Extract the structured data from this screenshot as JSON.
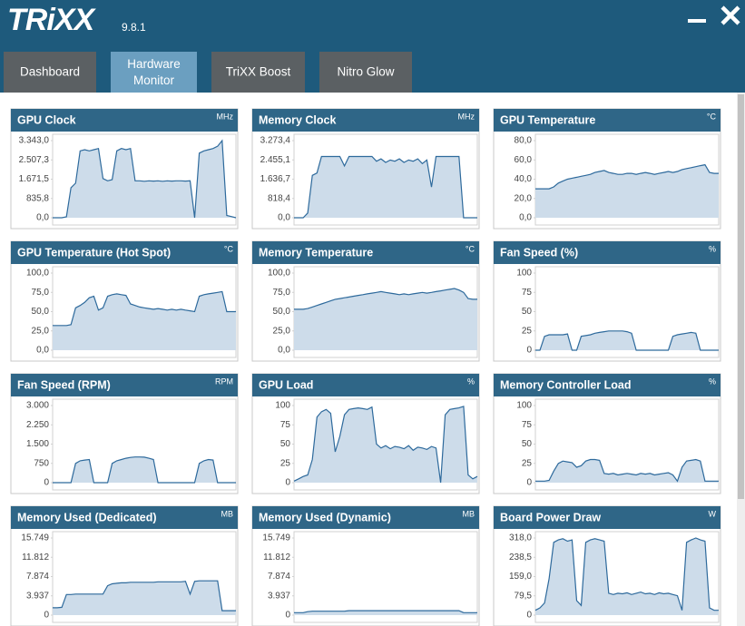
{
  "header": {
    "logo": "TRiXX",
    "version": "9.8.1"
  },
  "tabs": [
    "Dashboard",
    "Hardware Monitor",
    "TriXX Boost",
    "Nitro Glow"
  ],
  "active_tab": 1,
  "chart_data": [
    {
      "type": "area",
      "title": "GPU Clock",
      "unit": "MHz",
      "ylim": [
        0,
        3343
      ],
      "yticks": [
        {
          "value": 0,
          "label": "0,0"
        },
        {
          "value": 835.8,
          "label": "835,8"
        },
        {
          "value": 1671.5,
          "label": "1.671,5"
        },
        {
          "value": 2507.3,
          "label": "2.507,3"
        },
        {
          "value": 3343,
          "label": "3.343,0"
        }
      ],
      "values": [
        0,
        0,
        0,
        40,
        1300,
        1500,
        2900,
        2950,
        2900,
        2950,
        3000,
        1700,
        1600,
        1650,
        2900,
        3000,
        2950,
        3000,
        1600,
        1600,
        1580,
        1600,
        1590,
        1600,
        1580,
        1600,
        1590,
        1600,
        1600,
        1590,
        1600,
        0,
        2800,
        2900,
        2950,
        3000,
        3100,
        3343,
        100,
        50,
        0
      ]
    },
    {
      "type": "area",
      "title": "Memory Clock",
      "unit": "MHz",
      "ylim": [
        0,
        3273.4
      ],
      "yticks": [
        {
          "value": 0,
          "label": "0,0"
        },
        {
          "value": 818.4,
          "label": "818,4"
        },
        {
          "value": 1636.7,
          "label": "1.636,7"
        },
        {
          "value": 2455.1,
          "label": "2.455,1"
        },
        {
          "value": 3273.4,
          "label": "3.273,4"
        }
      ],
      "values": [
        0,
        0,
        0,
        200,
        1800,
        1900,
        2600,
        2600,
        2600,
        2600,
        2600,
        2200,
        2600,
        2600,
        2600,
        2600,
        2600,
        2600,
        2400,
        2500,
        2350,
        2450,
        2400,
        2500,
        2350,
        2450,
        2400,
        2500,
        2300,
        2450,
        1300,
        2600,
        2600,
        2600,
        2600,
        2600,
        2600,
        0,
        0,
        0,
        0
      ]
    },
    {
      "type": "area",
      "title": "GPU Temperature",
      "unit": "°C",
      "ylim": [
        0,
        80
      ],
      "yticks": [
        {
          "value": 0,
          "label": "0,0"
        },
        {
          "value": 20,
          "label": "20,0"
        },
        {
          "value": 40,
          "label": "40,0"
        },
        {
          "value": 60,
          "label": "60,0"
        },
        {
          "value": 80,
          "label": "80,0"
        }
      ],
      "values": [
        30,
        30,
        30,
        30,
        32,
        36,
        38,
        40,
        41,
        42,
        43,
        44,
        45,
        47,
        48,
        49,
        47,
        46,
        45,
        45,
        46,
        46,
        45,
        46,
        47,
        46,
        45,
        46,
        47,
        48,
        47,
        48,
        50,
        51,
        52,
        53,
        54,
        55,
        47,
        46,
        46
      ]
    },
    {
      "type": "area",
      "title": "GPU Temperature (Hot Spot)",
      "unit": "°C",
      "ylim": [
        0,
        100
      ],
      "yticks": [
        {
          "value": 0,
          "label": "0,0"
        },
        {
          "value": 25,
          "label": "25,0"
        },
        {
          "value": 50,
          "label": "50,0"
        },
        {
          "value": 75,
          "label": "75,0"
        },
        {
          "value": 100,
          "label": "100,0"
        }
      ],
      "values": [
        32,
        32,
        32,
        32,
        33,
        55,
        58,
        62,
        68,
        70,
        52,
        55,
        70,
        72,
        73,
        72,
        71,
        60,
        58,
        56,
        55,
        54,
        53,
        54,
        53,
        52,
        53,
        52,
        53,
        52,
        51,
        50,
        70,
        72,
        73,
        74,
        75,
        76,
        50,
        50,
        50
      ]
    },
    {
      "type": "area",
      "title": "Memory Temperature",
      "unit": "°C",
      "ylim": [
        0,
        100
      ],
      "yticks": [
        {
          "value": 0,
          "label": "0,0"
        },
        {
          "value": 25,
          "label": "25,0"
        },
        {
          "value": 50,
          "label": "50,0"
        },
        {
          "value": 75,
          "label": "75,0"
        },
        {
          "value": 100,
          "label": "100,0"
        }
      ],
      "values": [
        53,
        53,
        53,
        54,
        56,
        58,
        60,
        62,
        64,
        66,
        67,
        68,
        69,
        70,
        71,
        72,
        73,
        74,
        75,
        76,
        75,
        74,
        73,
        72,
        73,
        72,
        73,
        74,
        75,
        74,
        75,
        76,
        77,
        78,
        79,
        80,
        78,
        75,
        67,
        66,
        66
      ]
    },
    {
      "type": "area",
      "title": "Fan Speed (%)",
      "unit": "%",
      "ylim": [
        0,
        100
      ],
      "yticks": [
        0,
        25,
        50,
        75,
        100
      ],
      "values": [
        0,
        0,
        18,
        20,
        20,
        20,
        20,
        21,
        0,
        0,
        18,
        19,
        20,
        22,
        23,
        24,
        25,
        25,
        25,
        25,
        24,
        22,
        0,
        0,
        0,
        0,
        0,
        0,
        0,
        0,
        18,
        20,
        21,
        22,
        23,
        22,
        0,
        0,
        0,
        0,
        0
      ]
    },
    {
      "type": "area",
      "title": "Fan Speed (RPM)",
      "unit": "RPM",
      "ylim": [
        0,
        3000
      ],
      "yticks": [
        0,
        750,
        {
          "value": 1500,
          "label": "1.500"
        },
        {
          "value": 2250,
          "label": "2.250"
        },
        {
          "value": 3000,
          "label": "3.000"
        }
      ],
      "values": [
        0,
        0,
        0,
        0,
        0,
        750,
        850,
        880,
        900,
        0,
        0,
        0,
        0,
        750,
        850,
        900,
        950,
        980,
        1000,
        1000,
        990,
        950,
        900,
        0,
        0,
        0,
        0,
        0,
        0,
        0,
        0,
        0,
        750,
        850,
        900,
        880,
        0,
        0,
        0,
        0,
        0
      ]
    },
    {
      "type": "area",
      "title": "GPU Load",
      "unit": "%",
      "ylim": [
        0,
        100
      ],
      "yticks": [
        0,
        25,
        50,
        75,
        100
      ],
      "values": [
        2,
        5,
        8,
        10,
        30,
        85,
        92,
        95,
        90,
        40,
        60,
        88,
        95,
        96,
        97,
        96,
        95,
        98,
        50,
        45,
        48,
        44,
        47,
        46,
        44,
        48,
        42,
        46,
        45,
        43,
        47,
        45,
        0,
        88,
        95,
        96,
        97,
        99,
        10,
        5,
        8
      ]
    },
    {
      "type": "area",
      "title": "Memory Controller Load",
      "unit": "%",
      "ylim": [
        0,
        100
      ],
      "yticks": [
        0,
        25,
        50,
        75,
        100
      ],
      "values": [
        2,
        2,
        2,
        3,
        15,
        25,
        28,
        27,
        26,
        20,
        22,
        28,
        30,
        30,
        29,
        12,
        11,
        12,
        10,
        11,
        12,
        11,
        10,
        12,
        11,
        12,
        10,
        11,
        12,
        13,
        10,
        2,
        20,
        28,
        29,
        30,
        28,
        2,
        2,
        2,
        2
      ]
    },
    {
      "type": "area",
      "title": "Memory Used (Dedicated)",
      "unit": "MB",
      "ylim": [
        0,
        15749
      ],
      "yticks": [
        0,
        {
          "value": 3937,
          "label": "3.937"
        },
        {
          "value": 7874,
          "label": "7.874"
        },
        {
          "value": 11812,
          "label": "11.812"
        },
        {
          "value": 15749,
          "label": "15.749"
        }
      ],
      "values": [
        1500,
        1500,
        1600,
        4200,
        4200,
        4300,
        4300,
        4300,
        4300,
        4300,
        4300,
        4300,
        6000,
        6400,
        6500,
        6600,
        6600,
        6700,
        6700,
        6700,
        6700,
        6700,
        6700,
        6800,
        6800,
        6800,
        6800,
        6800,
        6800,
        6900,
        4300,
        6900,
        7000,
        7000,
        7000,
        7000,
        7000,
        900,
        900,
        900,
        900
      ]
    },
    {
      "type": "area",
      "title": "Memory Used (Dynamic)",
      "unit": "MB",
      "ylim": [
        0,
        15749
      ],
      "yticks": [
        0,
        {
          "value": 3937,
          "label": "3.937"
        },
        {
          "value": 7874,
          "label": "7.874"
        },
        {
          "value": 11812,
          "label": "11.812"
        },
        {
          "value": 15749,
          "label": "15.749"
        }
      ],
      "values": [
        500,
        500,
        500,
        700,
        800,
        800,
        800,
        800,
        800,
        800,
        800,
        800,
        900,
        900,
        900,
        900,
        900,
        900,
        900,
        900,
        900,
        900,
        900,
        900,
        900,
        900,
        900,
        900,
        900,
        900,
        900,
        900,
        900,
        900,
        900,
        900,
        900,
        500,
        500,
        500,
        500
      ]
    },
    {
      "type": "area",
      "title": "Board Power Draw",
      "unit": "W",
      "ylim": [
        0,
        318
      ],
      "yticks": [
        0,
        {
          "value": 79.5,
          "label": "79,5"
        },
        {
          "value": 159,
          "label": "159,0"
        },
        {
          "value": 238.5,
          "label": "238,5"
        },
        {
          "value": 318,
          "label": "318,0"
        }
      ],
      "values": [
        20,
        30,
        50,
        150,
        300,
        310,
        315,
        305,
        310,
        60,
        40,
        300,
        310,
        315,
        310,
        305,
        90,
        85,
        90,
        88,
        92,
        85,
        90,
        95,
        88,
        90,
        85,
        92,
        88,
        90,
        85,
        80,
        20,
        300,
        310,
        318,
        310,
        305,
        30,
        20,
        20
      ]
    }
  ]
}
